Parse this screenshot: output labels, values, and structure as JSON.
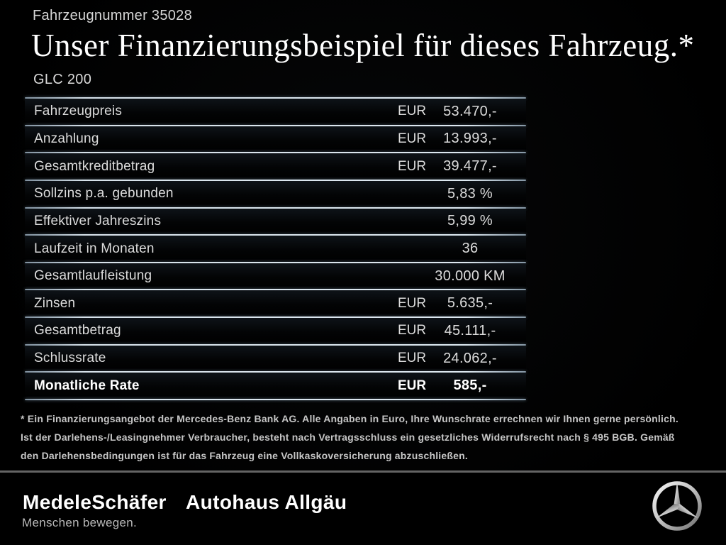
{
  "header": {
    "vehicle_number": "Fahrzeugnummer 35028",
    "title": "Unser Finanzierungsbeispiel für dieses Fahrzeug.*",
    "model": "GLC 200"
  },
  "table": {
    "rows": [
      {
        "label": "Fahrzeugpreis",
        "currency": "EUR",
        "value": "53.470,-",
        "emphasis": false
      },
      {
        "label": "Anzahlung",
        "currency": "EUR",
        "value": "13.993,-",
        "emphasis": false
      },
      {
        "label": "Gesamtkreditbetrag",
        "currency": "EUR",
        "value": "39.477,-",
        "emphasis": false
      },
      {
        "label": "Sollzins p.a. gebunden",
        "currency": "",
        "value": "5,83 %",
        "emphasis": false
      },
      {
        "label": "Effektiver Jahreszins",
        "currency": "",
        "value": "5,99 %",
        "emphasis": false
      },
      {
        "label": "Laufzeit in Monaten",
        "currency": "",
        "value": "36",
        "emphasis": false
      },
      {
        "label": "Gesamtlaufleistung",
        "currency": "",
        "value": "30.000 KM",
        "emphasis": false
      },
      {
        "label": "Zinsen",
        "currency": "EUR",
        "value": "5.635,-",
        "emphasis": false
      },
      {
        "label": "Gesamtbetrag",
        "currency": "EUR",
        "value": "45.111,-",
        "emphasis": false
      },
      {
        "label": "Schlussrate",
        "currency": "EUR",
        "value": "24.062,-",
        "emphasis": false
      },
      {
        "label": "Monatliche Rate",
        "currency": "EUR",
        "value": "585,-",
        "emphasis": true
      }
    ]
  },
  "footnote": "* Ein Finanzierungsangebot der Mercedes-Benz Bank AG. Alle Angaben in Euro, Ihre Wunschrate errechnen wir Ihnen gerne persönlich. Ist der Darlehens-/Leasingnehmer Verbraucher, besteht nach Vertragsschluss ein gesetzliches Widerrufsrecht nach § 495 BGB. Gemäß den Darlehensbedingungen ist für das Fahrzeug eine Vollkaskoversicherung abzuschließen.",
  "footer": {
    "dealer_primary": "MedeleSchäfer",
    "dealer_secondary": "Autohaus Allgäu",
    "tagline": "Menschen bewegen.",
    "brand_logo": "mercedes-star-icon"
  },
  "colors": {
    "background": "#000000",
    "table_line": "#d7e2ea",
    "footer_divider": "#646464",
    "text_primary": "#ffffff",
    "text_secondary": "#dcdcdc",
    "footnote_text": "#c6c6c6",
    "star_silver": "#e9e9e9"
  }
}
